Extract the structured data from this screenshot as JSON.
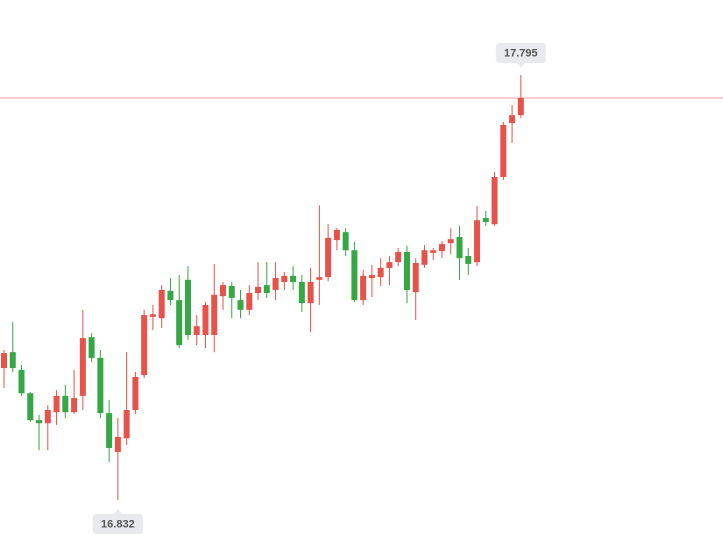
{
  "chart_data": {
    "type": "candlestick",
    "up_color": "#e5534b",
    "down_color": "#35a745",
    "price_line_color": "#f3a3a3",
    "ylim": [
      16.712,
      17.965
    ],
    "open": [
      17.131,
      17.167,
      17.127,
      17.074,
      17.013,
      17.006,
      17.031,
      17.068,
      17.031,
      17.068,
      17.201,
      17.154,
      17.029,
      16.941,
      16.972,
      17.036,
      17.115,
      17.247,
      17.244,
      17.306,
      17.285,
      17.331,
      17.206,
      17.206,
      17.206,
      17.294,
      17.317,
      17.285,
      17.263,
      17.301,
      17.319,
      17.308,
      17.326,
      17.34,
      17.326,
      17.278,
      17.331,
      17.337,
      17.421,
      17.439,
      17.398,
      17.285,
      17.335,
      17.337,
      17.358,
      17.371,
      17.394,
      17.303,
      17.365,
      17.392,
      17.396,
      17.414,
      17.428,
      17.385,
      17.371,
      17.471,
      17.457,
      17.564,
      17.686,
      17.704
    ],
    "high": [
      17.172,
      17.235,
      17.138,
      17.077,
      17.025,
      17.047,
      17.081,
      17.093,
      17.127,
      17.263,
      17.21,
      17.172,
      17.059,
      17.018,
      17.167,
      17.122,
      17.263,
      17.274,
      17.319,
      17.335,
      17.342,
      17.362,
      17.251,
      17.281,
      17.367,
      17.326,
      17.326,
      17.308,
      17.319,
      17.371,
      17.371,
      17.371,
      17.349,
      17.362,
      17.342,
      17.358,
      17.5,
      17.457,
      17.448,
      17.448,
      17.417,
      17.353,
      17.365,
      17.38,
      17.385,
      17.403,
      17.408,
      17.38,
      17.41,
      17.403,
      17.419,
      17.448,
      17.453,
      17.403,
      17.498,
      17.487,
      17.575,
      17.689,
      17.727,
      17.795
    ],
    "low": [
      17.086,
      17.122,
      17.068,
      17.009,
      16.945,
      16.945,
      17.002,
      17.018,
      17.027,
      17.036,
      17.145,
      17.018,
      16.918,
      16.832,
      16.957,
      17.027,
      17.108,
      17.217,
      17.222,
      17.274,
      17.176,
      17.195,
      17.183,
      17.176,
      17.167,
      17.263,
      17.244,
      17.244,
      17.251,
      17.285,
      17.29,
      17.285,
      17.308,
      17.308,
      17.258,
      17.213,
      17.274,
      17.328,
      17.398,
      17.385,
      17.281,
      17.274,
      17.292,
      17.317,
      17.319,
      17.362,
      17.278,
      17.24,
      17.358,
      17.376,
      17.38,
      17.389,
      17.331,
      17.342,
      17.362,
      17.453,
      17.453,
      17.557,
      17.641,
      17.698
    ],
    "close": [
      17.165,
      17.131,
      17.074,
      17.013,
      17.006,
      17.036,
      17.068,
      17.031,
      17.063,
      17.199,
      17.154,
      17.029,
      16.95,
      16.975,
      17.036,
      17.111,
      17.251,
      17.253,
      17.308,
      17.285,
      17.183,
      17.206,
      17.226,
      17.274,
      17.297,
      17.319,
      17.29,
      17.263,
      17.301,
      17.315,
      17.301,
      17.335,
      17.34,
      17.326,
      17.278,
      17.326,
      17.337,
      17.426,
      17.444,
      17.398,
      17.285,
      17.34,
      17.342,
      17.358,
      17.371,
      17.394,
      17.308,
      17.369,
      17.398,
      17.398,
      17.412,
      17.423,
      17.38,
      17.367,
      17.466,
      17.462,
      17.564,
      17.682,
      17.704,
      17.743
    ]
  }
}
